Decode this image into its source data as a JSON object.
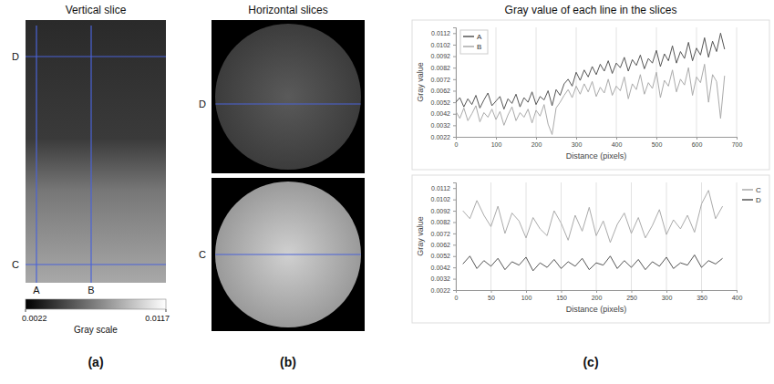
{
  "panels": [
    {
      "label": "(a)",
      "title": "Vertical slice",
      "line_labels": {
        "horizontal": [
          "D",
          "C"
        ],
        "vertical": [
          "A",
          "B"
        ]
      },
      "colorbar": {
        "title": "Gray scale",
        "range": [
          0.0022,
          0.0117
        ],
        "ticks": [
          0.0022,
          0.0117
        ]
      }
    },
    {
      "label": "(b)",
      "title": "Horizontal slices",
      "slices": [
        {
          "line_label": "D"
        },
        {
          "line_label": "C"
        }
      ]
    },
    {
      "label": "(c)",
      "title": "Gray value of each line in the slices"
    }
  ],
  "chart_data": [
    {
      "type": "line",
      "x": [
        0,
        10,
        20,
        30,
        40,
        50,
        60,
        70,
        80,
        90,
        100,
        110,
        120,
        130,
        140,
        150,
        160,
        170,
        180,
        190,
        200,
        210,
        220,
        230,
        240,
        250,
        260,
        270,
        280,
        290,
        300,
        310,
        320,
        330,
        340,
        350,
        360,
        370,
        380,
        390,
        400,
        410,
        420,
        430,
        440,
        450,
        460,
        470,
        480,
        490,
        500,
        510,
        520,
        530,
        540,
        550,
        560,
        570,
        580,
        590,
        600,
        610,
        620,
        630,
        640,
        650,
        660,
        670
      ],
      "series": [
        {
          "name": "A",
          "color": "#555555",
          "values": [
            0.0052,
            0.0056,
            0.0048,
            0.0055,
            0.005,
            0.0058,
            0.0047,
            0.0054,
            0.006,
            0.0049,
            0.0053,
            0.0057,
            0.0046,
            0.0055,
            0.0051,
            0.0059,
            0.0048,
            0.0056,
            0.0052,
            0.0061,
            0.005,
            0.0057,
            0.0054,
            0.0062,
            0.0049,
            0.0063,
            0.0058,
            0.0068,
            0.0072,
            0.0066,
            0.0078,
            0.0071,
            0.008,
            0.0074,
            0.0083,
            0.0076,
            0.0085,
            0.0079,
            0.0088,
            0.0077,
            0.0086,
            0.0082,
            0.0091,
            0.0079,
            0.0089,
            0.0084,
            0.0093,
            0.0081,
            0.009,
            0.0086,
            0.0097,
            0.0083,
            0.0094,
            0.0088,
            0.0101,
            0.0086,
            0.0096,
            0.009,
            0.0104,
            0.0088,
            0.0099,
            0.0093,
            0.0108,
            0.0091,
            0.0105,
            0.0096,
            0.0112,
            0.0098
          ]
        },
        {
          "name": "B",
          "color": "#aaaaaa",
          "values": [
            0.0044,
            0.0038,
            0.0047,
            0.0036,
            0.0042,
            0.0049,
            0.0035,
            0.0043,
            0.0039,
            0.0046,
            0.0037,
            0.0044,
            0.0032,
            0.0041,
            0.0048,
            0.0036,
            0.0043,
            0.0039,
            0.0046,
            0.0034,
            0.0045,
            0.004,
            0.005,
            0.0033,
            0.0024,
            0.0047,
            0.0052,
            0.0058,
            0.0063,
            0.0056,
            0.0066,
            0.0059,
            0.0068,
            0.0061,
            0.007,
            0.0057,
            0.0065,
            0.006,
            0.0072,
            0.0058,
            0.0066,
            0.0062,
            0.0074,
            0.0055,
            0.0068,
            0.0063,
            0.0076,
            0.0059,
            0.0069,
            0.0064,
            0.0078,
            0.0056,
            0.0071,
            0.0066,
            0.008,
            0.0061,
            0.0072,
            0.0067,
            0.0082,
            0.0058,
            0.0074,
            0.0069,
            0.0085,
            0.0052,
            0.0076,
            0.007,
            0.0038,
            0.0075
          ]
        }
      ],
      "xlim": [
        0,
        700
      ],
      "xticks": [
        0,
        100,
        200,
        300,
        400,
        500,
        600,
        700
      ],
      "ylim": [
        0.0022,
        0.0117
      ],
      "yticks": [
        0.0022,
        0.0032,
        0.0042,
        0.0052,
        0.0062,
        0.0072,
        0.0082,
        0.0092,
        0.0102,
        0.0112
      ],
      "xlabel": "Distance (pixels)",
      "ylabel": "Gray value",
      "grid": "x",
      "legend": "upper left"
    },
    {
      "type": "line",
      "x": [
        10,
        20,
        30,
        40,
        50,
        60,
        70,
        80,
        90,
        100,
        110,
        120,
        130,
        140,
        150,
        160,
        170,
        180,
        190,
        200,
        210,
        220,
        230,
        240,
        250,
        260,
        270,
        280,
        290,
        300,
        310,
        320,
        330,
        340,
        350,
        360,
        370,
        380
      ],
      "series": [
        {
          "name": "C",
          "color": "#aaaaaa",
          "values": [
            0.0092,
            0.0085,
            0.0101,
            0.0088,
            0.0078,
            0.0096,
            0.0072,
            0.009,
            0.0083,
            0.0068,
            0.0086,
            0.0076,
            0.007,
            0.0092,
            0.0081,
            0.0066,
            0.0088,
            0.0074,
            0.0095,
            0.007,
            0.0083,
            0.0064,
            0.008,
            0.009,
            0.0072,
            0.0086,
            0.0068,
            0.0079,
            0.0093,
            0.0071,
            0.0084,
            0.0076,
            0.0088,
            0.0073,
            0.0098,
            0.011,
            0.0085,
            0.0096
          ]
        },
        {
          "name": "D",
          "color": "#555555",
          "values": [
            0.0045,
            0.0052,
            0.0041,
            0.0048,
            0.0043,
            0.005,
            0.004,
            0.0047,
            0.0044,
            0.0051,
            0.0039,
            0.0046,
            0.0042,
            0.0049,
            0.0041,
            0.0047,
            0.0043,
            0.005,
            0.004,
            0.0046,
            0.0044,
            0.0052,
            0.0041,
            0.0048,
            0.0042,
            0.0049,
            0.004,
            0.0047,
            0.0043,
            0.0051,
            0.0041,
            0.0046,
            0.0044,
            0.0053,
            0.0042,
            0.0048,
            0.0045,
            0.005
          ]
        }
      ],
      "xlim": [
        0,
        400
      ],
      "xticks": [
        0,
        50,
        100,
        150,
        200,
        250,
        300,
        350,
        400
      ],
      "ylim": [
        0.0022,
        0.0117
      ],
      "yticks": [
        0.0022,
        0.0032,
        0.0042,
        0.0052,
        0.0062,
        0.0072,
        0.0082,
        0.0092,
        0.0102,
        0.0112
      ],
      "xlabel": "Distance (pixels)",
      "ylabel": "Gray value",
      "grid": "x",
      "legend": "right"
    }
  ]
}
